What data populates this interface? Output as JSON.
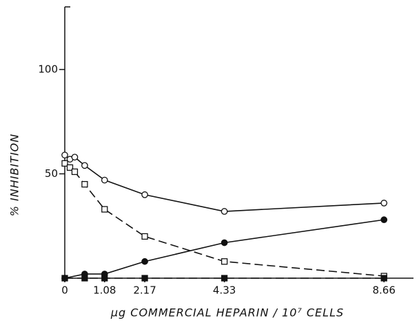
{
  "chart_data": {
    "type": "line",
    "x_label": "µg COMMERCIAL HEPARIN / 10⁷ CELLS",
    "y_label": "% INHIBITION",
    "xlim": [
      0,
      9.46
    ],
    "ylim": [
      0,
      130
    ],
    "xticks": [
      0,
      1.08,
      2.17,
      4.33,
      8.66
    ],
    "yticks": [
      50,
      100
    ],
    "series": [
      {
        "color": "#111111",
        "marker": "circle",
        "fill": "open",
        "line_style": "solid",
        "x": [
          0,
          0.14,
          0.27,
          0.54,
          1.08,
          2.17,
          4.33,
          8.66
        ],
        "values": [
          59,
          57,
          58,
          54,
          47,
          40,
          32,
          36
        ]
      },
      {
        "color": "#111111",
        "marker": "square",
        "fill": "open",
        "line_style": "dashed",
        "x": [
          0,
          0.14,
          0.27,
          0.54,
          1.08,
          2.17,
          4.33,
          8.66
        ],
        "values": [
          55,
          53,
          51,
          45,
          33,
          20,
          8,
          1
        ]
      },
      {
        "color": "#111111",
        "marker": "circle",
        "fill": "filled",
        "line_style": "solid",
        "x": [
          0,
          0.54,
          1.08,
          2.17,
          4.33,
          8.66
        ],
        "values": [
          0,
          2,
          2,
          8,
          17,
          28
        ]
      },
      {
        "color": "#111111",
        "marker": "square",
        "fill": "filled",
        "line_style": "dashed",
        "x": [
          0,
          0.54,
          1.08,
          2.17,
          4.33,
          8.66
        ],
        "values": [
          0,
          0,
          0,
          0,
          0,
          0
        ]
      }
    ]
  }
}
